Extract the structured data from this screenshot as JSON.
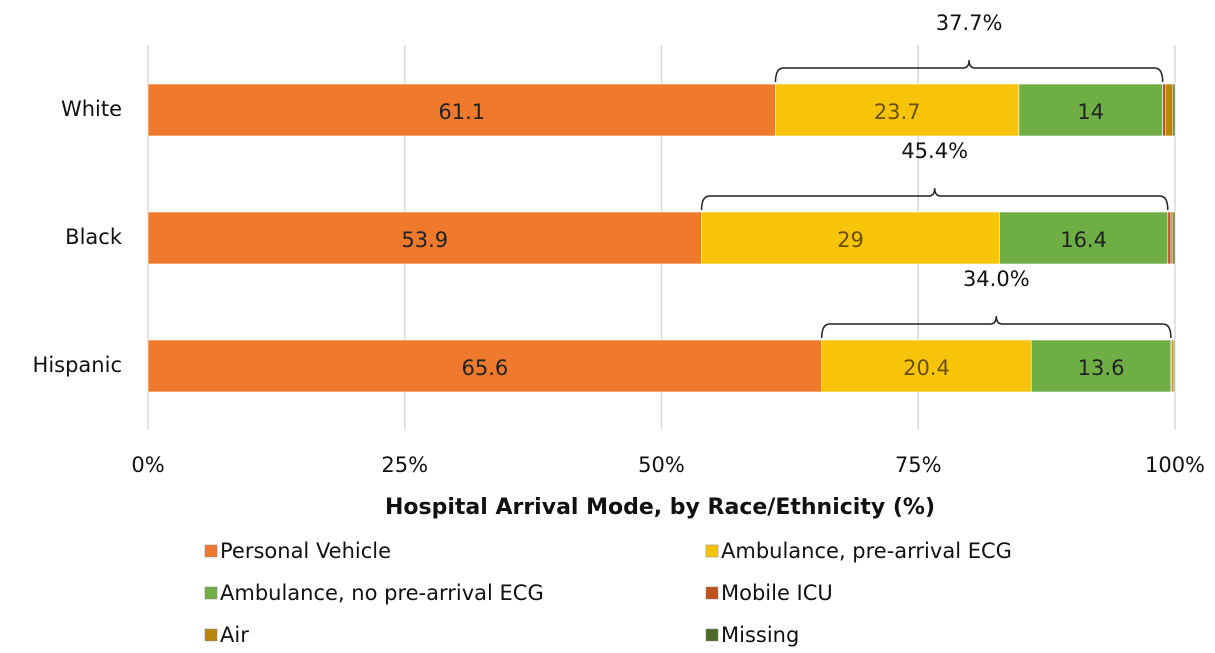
{
  "chart_data": {
    "type": "stacked-barh",
    "categories": [
      "White",
      "Black",
      "Hispanic"
    ],
    "series": [
      {
        "name": "Personal Vehicle",
        "color": "#ef7a2e",
        "values": [
          61.1,
          53.9,
          65.6
        ],
        "show_labels": true
      },
      {
        "name": "Ambulance, pre-arrival ECG",
        "color": "#f7c40a",
        "values": [
          23.7,
          29,
          20.4
        ],
        "show_labels": true
      },
      {
        "name": "Ambulance, no pre-arrival ECG",
        "color": "#6fae45",
        "values": [
          14,
          16.4,
          13.6
        ],
        "show_labels": true
      },
      {
        "name": "Mobile ICU",
        "color": "#c0501e",
        "values": [
          0.3,
          0.3,
          0.1
        ],
        "show_labels": false
      },
      {
        "name": "Air",
        "color": "#b8860b",
        "values": [
          0.7,
          0.2,
          0.2
        ],
        "show_labels": false
      },
      {
        "name": "Missing",
        "color": "#4a6b2a",
        "values": [
          0.2,
          0.2,
          0.1
        ],
        "show_labels": false
      }
    ],
    "annotations": [
      "37.7%",
      "45.4%",
      "34.0%"
    ],
    "xlabel": "Hospital Arrival Mode, by Race/Ethnicity (%)",
    "xlim": [
      0,
      100
    ],
    "xticks": [
      {
        "value": 0,
        "label": "0%"
      },
      {
        "value": 25,
        "label": "25%"
      },
      {
        "value": 50,
        "label": "50%"
      },
      {
        "value": 75,
        "label": "75%"
      },
      {
        "value": 100,
        "label": "100%"
      }
    ],
    "grid": true,
    "legend": "bottom"
  }
}
